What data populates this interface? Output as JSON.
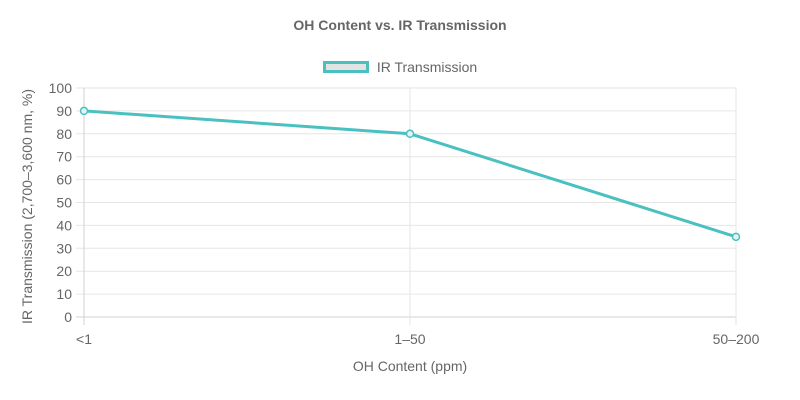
{
  "chart_data": {
    "type": "line",
    "title": "OH Content vs. IR Transmission",
    "xlabel": "OH Content (ppm)",
    "ylabel": "IR Transmission (2,700–3,600 nm, %)",
    "categories": [
      "<1",
      "1–50",
      "50–200"
    ],
    "series": [
      {
        "name": "IR Transmission",
        "values": [
          90,
          80,
          35
        ],
        "color": "#4bc0c0"
      }
    ],
    "ylim": [
      0,
      100
    ],
    "yticks": [
      0,
      10,
      20,
      30,
      40,
      50,
      60,
      70,
      80,
      90,
      100
    ],
    "grid": true,
    "legend_position": "top"
  }
}
